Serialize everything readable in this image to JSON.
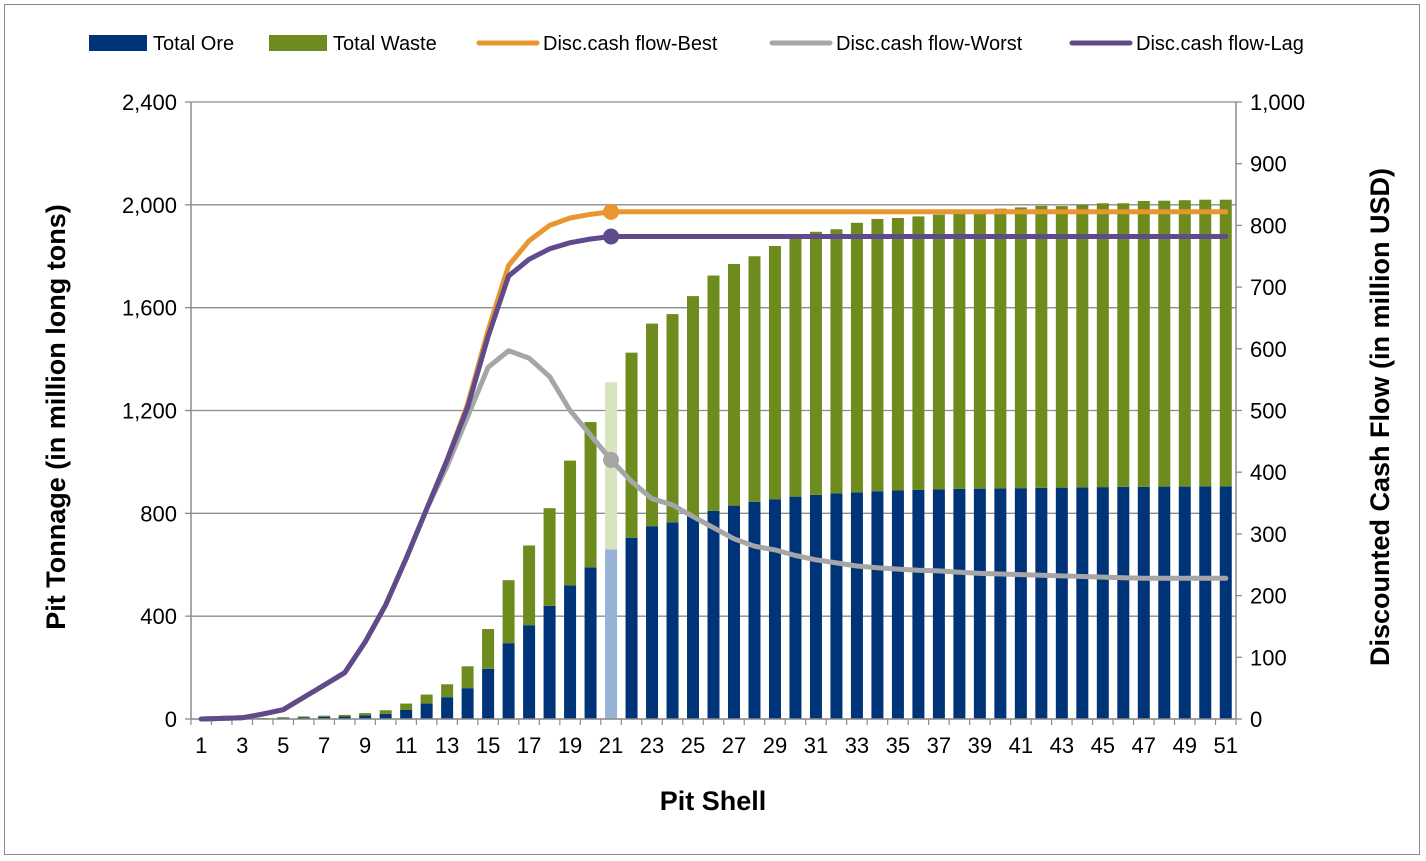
{
  "chart_data": {
    "type": "bar",
    "title": "",
    "xlabel": "Pit Shell",
    "ylabel": "Pit Tonnage (in million long tons)",
    "y2label": "Discounted Cash Flow (in million USD)",
    "ylim": [
      0,
      2400
    ],
    "y2lim": [
      0,
      1000
    ],
    "yticks": [
      "0",
      "400",
      "800",
      "1,200",
      "1,600",
      "2,000",
      "2,400"
    ],
    "y2ticks": [
      "0",
      "100",
      "200",
      "300",
      "400",
      "500",
      "600",
      "700",
      "800",
      "900",
      "1,000"
    ],
    "xtick_labels": [
      "1",
      "3",
      "5",
      "7",
      "9",
      "11",
      "13",
      "15",
      "17",
      "19",
      "21",
      "23",
      "25",
      "27",
      "29",
      "31",
      "33",
      "35",
      "37",
      "39",
      "41",
      "43",
      "45",
      "47",
      "49",
      "51"
    ],
    "stacked": true,
    "grid": true,
    "legend_position": "top",
    "highlight_shell": 21,
    "categories": [
      1,
      2,
      3,
      4,
      5,
      6,
      7,
      8,
      9,
      10,
      11,
      12,
      13,
      14,
      15,
      16,
      17,
      18,
      19,
      20,
      21,
      22,
      23,
      24,
      25,
      26,
      27,
      28,
      29,
      30,
      31,
      32,
      33,
      34,
      35,
      36,
      37,
      38,
      39,
      40,
      41,
      42,
      43,
      44,
      45,
      46,
      47,
      48,
      49,
      50,
      51
    ],
    "series": [
      {
        "name": "Total Ore",
        "kind": "bar",
        "axis": "left",
        "color": "#003478",
        "highlight_color": "#95b3d7",
        "values": [
          0,
          0,
          1,
          2,
          4,
          6,
          8,
          10,
          14,
          20,
          35,
          60,
          85,
          120,
          195,
          295,
          365,
          440,
          520,
          590,
          660,
          705,
          750,
          765,
          790,
          810,
          830,
          845,
          855,
          865,
          872,
          877,
          882,
          886,
          889,
          891,
          893,
          895,
          896,
          897,
          898,
          899,
          900,
          901,
          902,
          903,
          903,
          904,
          904,
          905,
          905
        ]
      },
      {
        "name": "Total Waste",
        "kind": "bar",
        "axis": "left",
        "color": "#6e8b1e",
        "highlight_color": "#d7e4bd",
        "values": [
          0,
          1,
          1,
          2,
          3,
          4,
          5,
          6,
          9,
          14,
          25,
          35,
          50,
          85,
          155,
          245,
          310,
          380,
          485,
          565,
          650,
          720,
          788,
          810,
          855,
          915,
          940,
          955,
          985,
          1015,
          1023,
          1028,
          1048,
          1059,
          1060,
          1064,
          1069,
          1075,
          1079,
          1088,
          1092,
          1097,
          1095,
          1099,
          1104,
          1103,
          1112,
          1112,
          1114,
          1115,
          1115
        ]
      },
      {
        "name": "Disc.cash flow-Best",
        "kind": "line",
        "axis": "right",
        "color": "#e8962f",
        "marker_at": 21,
        "values": [
          0,
          1,
          2,
          8,
          15,
          35,
          55,
          75,
          125,
          185,
          260,
          340,
          420,
          510,
          630,
          735,
          775,
          800,
          812,
          818,
          822,
          822,
          822,
          822,
          822,
          822,
          822,
          822,
          822,
          822,
          822,
          822,
          822,
          822,
          822,
          822,
          822,
          822,
          822,
          822,
          822,
          822,
          822,
          822,
          822,
          822,
          822,
          822,
          822,
          822,
          822
        ]
      },
      {
        "name": "Disc.cash flow-Worst",
        "kind": "line",
        "axis": "right",
        "color": "#a6a6a6",
        "marker_at": 21,
        "values": [
          0,
          1,
          2,
          8,
          15,
          35,
          55,
          75,
          125,
          185,
          260,
          340,
          410,
          490,
          570,
          597,
          585,
          555,
          500,
          460,
          420,
          385,
          357,
          347,
          328,
          310,
          292,
          280,
          274,
          265,
          258,
          253,
          248,
          245,
          243,
          241,
          240,
          238,
          236,
          235,
          234,
          233,
          232,
          231,
          230,
          229,
          228,
          228,
          228,
          228,
          228
        ]
      },
      {
        "name": "Disc.cash flow-Lag",
        "kind": "line",
        "axis": "right",
        "color": "#5f4b8b",
        "marker_at": 21,
        "values": [
          0,
          1,
          2,
          8,
          15,
          35,
          55,
          75,
          125,
          185,
          260,
          340,
          420,
          505,
          620,
          718,
          745,
          762,
          772,
          778,
          782,
          782,
          782,
          782,
          782,
          782,
          782,
          782,
          782,
          782,
          782,
          782,
          782,
          782,
          782,
          782,
          782,
          782,
          782,
          782,
          782,
          782,
          782,
          782,
          782,
          782,
          782,
          782,
          782,
          782,
          782
        ]
      }
    ]
  }
}
